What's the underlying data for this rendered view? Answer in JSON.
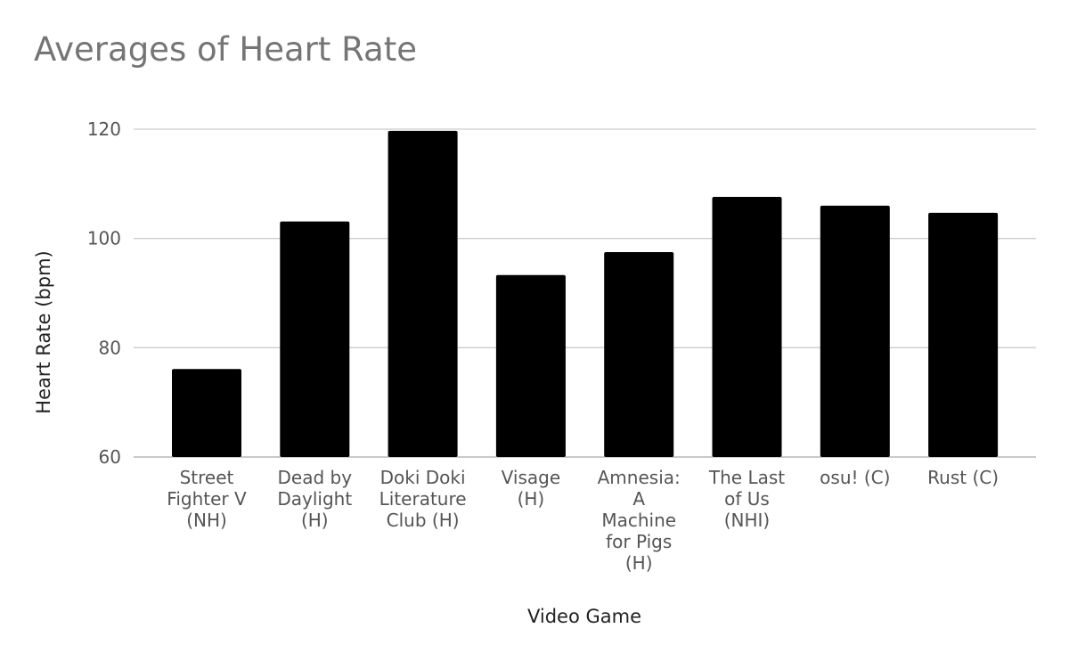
{
  "chart_data": {
    "type": "bar",
    "title": "Averages of Heart Rate",
    "xlabel": "Video Game",
    "ylabel": "Heart Rate (bpm)",
    "ylim": [
      60,
      120
    ],
    "yticks": [
      60,
      80,
      100,
      120
    ],
    "grid": true,
    "categories": [
      "Street Fighter V (NH)",
      "Dead by Daylight (H)",
      "Doki Doki Literature Club (H)",
      "Visage (H)",
      "Amnesia: A Machine for Pigs (H)",
      "The Last of Us (NHI)",
      "osu! (C)",
      "Rust (C)"
    ],
    "category_lines": [
      [
        "Street",
        "Fighter V",
        "(NH)"
      ],
      [
        "Dead by",
        "Daylight",
        "(H)"
      ],
      [
        "Doki Doki",
        "Literature",
        "Club (H)"
      ],
      [
        "Visage",
        "(H)"
      ],
      [
        "Amnesia:",
        "A",
        "Machine",
        "for Pigs",
        "(H)"
      ],
      [
        "The Last",
        "of Us",
        "(NHI)"
      ],
      [
        "osu! (C)"
      ],
      [
        "Rust (C)"
      ]
    ],
    "values": [
      76.1,
      103.1,
      119.7,
      93.3,
      97.5,
      107.6,
      106.0,
      104.7
    ],
    "bar_color": "#000000",
    "grid_color": "#cccccc"
  }
}
